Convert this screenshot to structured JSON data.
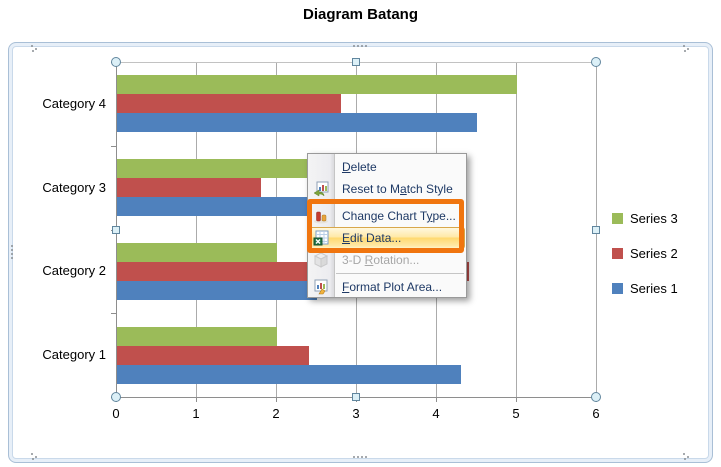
{
  "page": {
    "title": "Diagram Batang"
  },
  "chart_data": {
    "type": "bar",
    "orientation": "horizontal",
    "title": "Diagram Batang",
    "categories": [
      "Category 1",
      "Category 2",
      "Category 3",
      "Category 4"
    ],
    "category_display_order_top_to_bottom": [
      "Category 4",
      "Category 3",
      "Category 2",
      "Category 1"
    ],
    "series": [
      {
        "name": "Series 1",
        "color": "#4F81BD",
        "values": [
          4.3,
          2.5,
          3.5,
          4.5
        ]
      },
      {
        "name": "Series 2",
        "color": "#C0504D",
        "values": [
          2.4,
          4.4,
          1.8,
          2.8
        ]
      },
      {
        "name": "Series 3",
        "color": "#9BBB59",
        "values": [
          2.0,
          2.0,
          3.0,
          5.0
        ]
      }
    ],
    "x_ticks": [
      0,
      1,
      2,
      3,
      4,
      5,
      6
    ],
    "xlim": [
      0,
      6
    ],
    "ylabel": "",
    "xlabel": "",
    "grid": "vertical-major-only",
    "legend_position": "right"
  },
  "legend": {
    "items": [
      {
        "label": "Series 3",
        "color": "#9BBB59"
      },
      {
        "label": "Series 2",
        "color": "#C0504D"
      },
      {
        "label": "Series 1",
        "color": "#4F81BD"
      }
    ]
  },
  "context_menu": {
    "items": [
      {
        "pre": "",
        "key": "D",
        "post": "elete",
        "state": "normal",
        "icon": "none"
      },
      {
        "pre": "Reset to M",
        "key": "a",
        "post": "tch Style",
        "state": "normal",
        "icon": "reset-style-icon"
      },
      {
        "pre": "Change Chart T",
        "key": "y",
        "post": "pe...",
        "state": "normal",
        "icon": "change-chart-type-icon"
      },
      {
        "pre": "",
        "key": "E",
        "post": "dit Data...",
        "state": "highlighted",
        "icon": "edit-data-icon"
      },
      {
        "pre": "3-D ",
        "key": "R",
        "post": "otation...",
        "state": "disabled",
        "icon": "3d-rotation-icon"
      },
      {
        "pre": "",
        "key": "F",
        "post": "ormat Plot Area...",
        "state": "normal",
        "icon": "format-plot-area-icon"
      }
    ]
  },
  "annotation": {
    "color": "#F0750F",
    "highlights": [
      "Change Chart Type...",
      "Edit Data..."
    ]
  },
  "ui_colors": {
    "selection_handle_fill": "#DCF0F7",
    "menu_highlight": "#FFE9A8",
    "gridline": "#ABABAB",
    "axis": "#8E8E8E"
  }
}
